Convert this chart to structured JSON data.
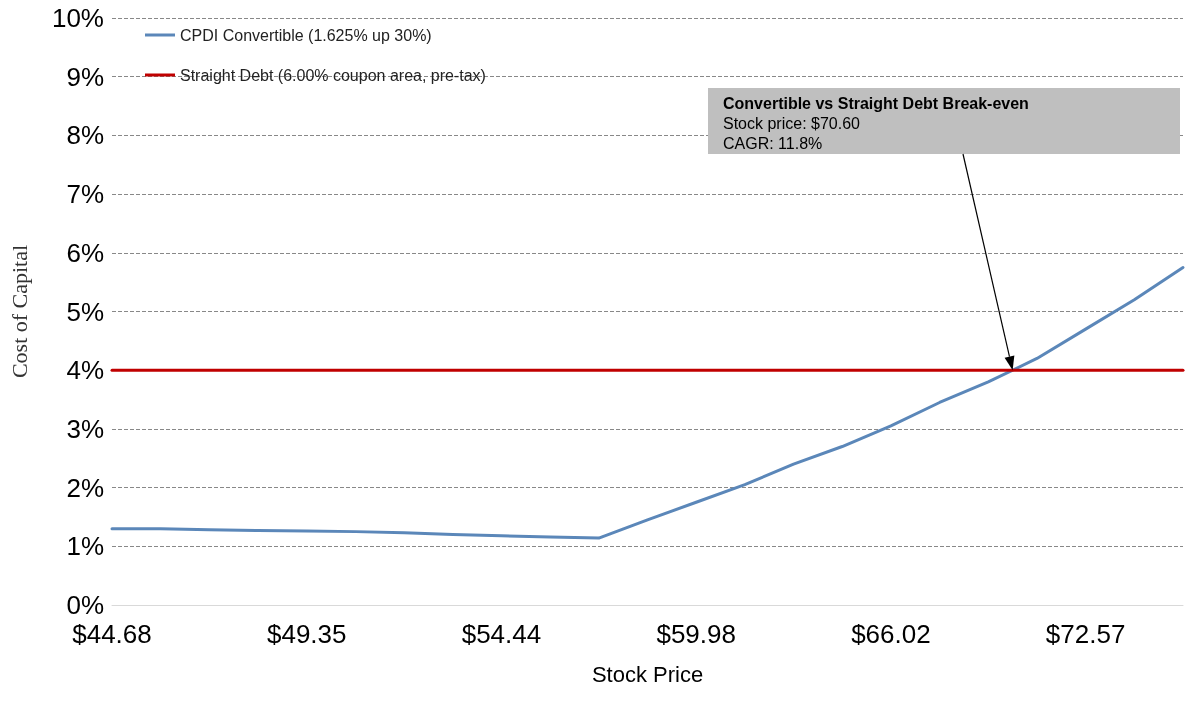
{
  "chart_data": {
    "type": "line",
    "xlabel": "Stock Price",
    "ylabel": "Cost of Capital",
    "categories": [
      "$44.68",
      null,
      null,
      null,
      "$49.35",
      null,
      null,
      null,
      "$54.44",
      null,
      null,
      null,
      "$59.98",
      null,
      null,
      null,
      "$66.02",
      null,
      null,
      null,
      "$72.57",
      null,
      null
    ],
    "series": [
      {
        "name": "CPDI Convertible (1.625% up 30%)",
        "color": "#5b87b9",
        "values": [
          1.3,
          1.3,
          1.28,
          1.27,
          1.26,
          1.25,
          1.23,
          1.2,
          1.18,
          1.16,
          1.14,
          1.45,
          1.75,
          2.05,
          2.4,
          2.7,
          3.05,
          3.45,
          3.8,
          4.2,
          4.7,
          5.2,
          5.75
        ]
      },
      {
        "name": "Straight Debt (6.00% coupon area, pre-tax)",
        "color": "#c00000",
        "values": [
          4,
          4,
          4,
          4,
          4,
          4,
          4,
          4,
          4,
          4,
          4,
          4,
          4,
          4,
          4,
          4,
          4,
          4,
          4,
          4,
          4,
          4,
          4
        ]
      }
    ],
    "ylim": [
      0,
      10
    ],
    "yticks": [
      {
        "value": 0,
        "label": "0%"
      },
      {
        "value": 1,
        "label": "1%"
      },
      {
        "value": 2,
        "label": "2%"
      },
      {
        "value": 3,
        "label": "3%"
      },
      {
        "value": 4,
        "label": "4%"
      },
      {
        "value": 5,
        "label": "5%"
      },
      {
        "value": 6,
        "label": "6%"
      },
      {
        "value": 7,
        "label": "7%"
      },
      {
        "value": 8,
        "label": "8%"
      },
      {
        "value": 9,
        "label": "9%"
      },
      {
        "value": 10,
        "label": "10%"
      }
    ],
    "grid": "y",
    "legend": "top left",
    "marker": "none",
    "line_style": "solid",
    "annotations": [
      "Convertible vs Straight Debt Break-even\nStock price: $70.60\nCAGR: 11.8%"
    ]
  }
}
